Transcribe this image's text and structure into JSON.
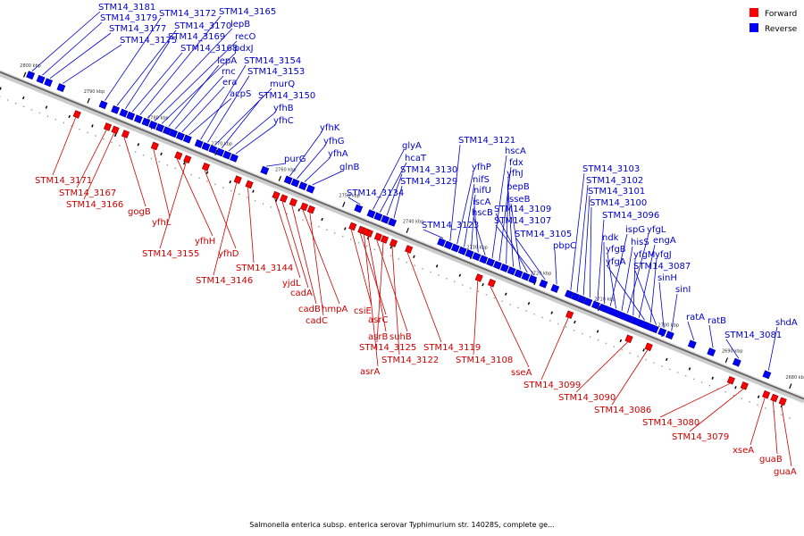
{
  "caption": "Salmonella enterica subsp. enterica serovar Typhimurium str. 14028S, complete ge...",
  "legend": {
    "forward_label": "Forward",
    "reverse_label": "Reverse",
    "forward_color": "#ff0000",
    "reverse_color": "#0000ff"
  },
  "scale": {
    "min_kbp": 2680,
    "max_kbp": 2800,
    "ticks": [
      "2680 kbp",
      "2690 kbp",
      "2700 kbp",
      "2710 kbp",
      "2720 kbp",
      "2730 kbp",
      "2740 kbp",
      "2750 kbp",
      "2760 kbp",
      "2770 kbp",
      "2780 kbp",
      "2790 kbp",
      "2800 kbp"
    ]
  },
  "reverse_genes": [
    {
      "name": "STM14_3181",
      "kbp": 2799.2
    },
    {
      "name": "STM14_3179",
      "kbp": 2797.6
    },
    {
      "name": "STM14_3177",
      "kbp": 2796.4
    },
    {
      "name": "STM14_3175",
      "kbp": 2794.4
    },
    {
      "name": "STM14_3172",
      "kbp": 2787.8
    },
    {
      "name": "STM14_3170",
      "kbp": 2785.9
    },
    {
      "name": "STM14_3169",
      "kbp": 2784.6
    },
    {
      "name": "STM14_3168",
      "kbp": 2783.5
    },
    {
      "name": "STM14_3165",
      "kbp": 2782.3
    },
    {
      "name": "lepB",
      "kbp": 2781.1
    },
    {
      "name": "recO",
      "kbp": 2780.0
    },
    {
      "name": "pdxJ",
      "kbp": 2778.9
    },
    {
      "name": "lepA",
      "kbp": 2777.8
    },
    {
      "name": "rnc",
      "kbp": 2776.8
    },
    {
      "name": "era",
      "kbp": 2775.7
    },
    {
      "name": "acpS",
      "kbp": 2774.6
    },
    {
      "name": "STM14_3154",
      "kbp": 2772.8
    },
    {
      "name": "STM14_3153",
      "kbp": 2771.7
    },
    {
      "name": "murQ",
      "kbp": 2770.6
    },
    {
      "name": "STM14_3150",
      "kbp": 2769.5
    },
    {
      "name": "yfhB",
      "kbp": 2768.4
    },
    {
      "name": "yfhC",
      "kbp": 2767.3
    },
    {
      "name": "purG",
      "kbp": 2762.5
    },
    {
      "name": "yfhK",
      "kbp": 2758.8
    },
    {
      "name": "yfhG",
      "kbp": 2757.7
    },
    {
      "name": "yfhA",
      "kbp": 2756.5
    },
    {
      "name": "glnB",
      "kbp": 2755.3
    },
    {
      "name": "STM14_3134",
      "kbp": 2747.8
    },
    {
      "name": "glyA",
      "kbp": 2745.8
    },
    {
      "name": "hcaT",
      "kbp": 2744.7
    },
    {
      "name": "STM14_3130",
      "kbp": 2743.6
    },
    {
      "name": "STM14_3129",
      "kbp": 2742.5
    },
    {
      "name": "STM14_3123",
      "kbp": 2734.8
    },
    {
      "name": "STM14_3121",
      "kbp": 2733.7
    },
    {
      "name": "yfhP",
      "kbp": 2732.6
    },
    {
      "name": "nifS",
      "kbp": 2731.5
    },
    {
      "name": "nifU",
      "kbp": 2730.4
    },
    {
      "name": "iscA",
      "kbp": 2729.3
    },
    {
      "name": "hscB",
      "kbp": 2728.2
    },
    {
      "name": "hscA",
      "kbp": 2727.1
    },
    {
      "name": "fdx",
      "kbp": 2726.0
    },
    {
      "name": "yfhJ",
      "kbp": 2724.9
    },
    {
      "name": "pepB",
      "kbp": 2723.8
    },
    {
      "name": "sseB",
      "kbp": 2722.7
    },
    {
      "name": "STM14_3109",
      "kbp": 2721.6
    },
    {
      "name": "STM14_3107",
      "kbp": 2720.5
    },
    {
      "name": "STM14_3105",
      "kbp": 2718.8
    },
    {
      "name": "pbpC",
      "kbp": 2717.0
    },
    {
      "name": "STM14_3103",
      "kbp": 2714.8
    },
    {
      "name": "STM14_3102",
      "kbp": 2713.8
    },
    {
      "name": "STM14_3101",
      "kbp": 2712.8
    },
    {
      "name": "STM14_3100",
      "kbp": 2711.8
    },
    {
      "name": "STM14_3096",
      "kbp": 2710.6
    },
    {
      "name": "ndk",
      "kbp": 2709.5
    },
    {
      "name": "ispG",
      "kbp": 2708.6
    },
    {
      "name": "yfgB",
      "kbp": 2707.7
    },
    {
      "name": "hisS",
      "kbp": 2706.8
    },
    {
      "name": "yfgL",
      "kbp": 2705.9
    },
    {
      "name": "yfgM",
      "kbp": 2705.0
    },
    {
      "name": "engA",
      "kbp": 2704.1
    },
    {
      "name": "yfgA",
      "kbp": 2703.2
    },
    {
      "name": "yfgJ",
      "kbp": 2702.3
    },
    {
      "name": "STM14_3087",
      "kbp": 2701.4
    },
    {
      "name": "sinH",
      "kbp": 2700.2
    },
    {
      "name": "sinI",
      "kbp": 2699.0
    },
    {
      "name": "ratA",
      "kbp": 2695.5
    },
    {
      "name": "ratB",
      "kbp": 2692.5
    },
    {
      "name": "STM14_3081",
      "kbp": 2688.5
    },
    {
      "name": "shdA",
      "kbp": 2683.8
    }
  ],
  "forward_genes": [
    {
      "name": "STM14_3171",
      "kbp": 2790.8
    },
    {
      "name": "STM14_3167",
      "kbp": 2786.0
    },
    {
      "name": "STM14_3166",
      "kbp": 2784.8
    },
    {
      "name": "gogB",
      "kbp": 2783.2
    },
    {
      "name": "yfhL",
      "kbp": 2778.6
    },
    {
      "name": "yfhH",
      "kbp": 2774.9
    },
    {
      "name": "STM14_3155",
      "kbp": 2773.5
    },
    {
      "name": "yfhD",
      "kbp": 2770.6
    },
    {
      "name": "STM14_3144",
      "kbp": 2763.8
    },
    {
      "name": "STM14_3146",
      "kbp": 2765.6
    },
    {
      "name": "yjdL",
      "kbp": 2759.6
    },
    {
      "name": "cadA",
      "kbp": 2758.4
    },
    {
      "name": "cadB",
      "kbp": 2756.9
    },
    {
      "name": "hmpA",
      "kbp": 2755.2
    },
    {
      "name": "cadC",
      "kbp": 2754.1
    },
    {
      "name": "csiE",
      "kbp": 2747.6
    },
    {
      "name": "asrC",
      "kbp": 2746.2
    },
    {
      "name": "asrB",
      "kbp": 2745.0
    },
    {
      "name": "suhB",
      "kbp": 2743.6
    },
    {
      "name": "STM14_3125",
      "kbp": 2742.6
    },
    {
      "name": "STM14_3122",
      "kbp": 2741.2
    },
    {
      "name": "asrA",
      "kbp": 2745.6
    },
    {
      "name": "STM14_3119",
      "kbp": 2738.8
    },
    {
      "name": "STM14_3108",
      "kbp": 2727.8
    },
    {
      "name": "sseA",
      "kbp": 2725.8
    },
    {
      "name": "STM14_3099",
      "kbp": 2713.6
    },
    {
      "name": "STM14_3090",
      "kbp": 2704.3
    },
    {
      "name": "STM14_3086",
      "kbp": 2701.2
    },
    {
      "name": "STM14_3080",
      "kbp": 2688.3
    },
    {
      "name": "STM14_3079",
      "kbp": 2686.2
    },
    {
      "name": "xseA",
      "kbp": 2682.8
    },
    {
      "name": "guaB",
      "kbp": 2681.5
    },
    {
      "name": "guaA",
      "kbp": 2680.2
    }
  ]
}
